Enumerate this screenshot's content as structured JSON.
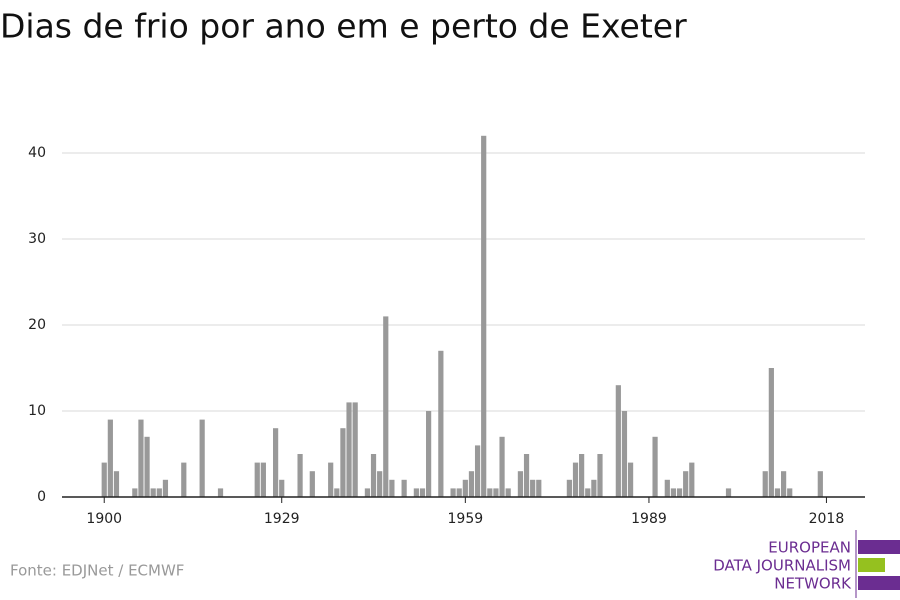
{
  "chart_data": {
    "type": "bar",
    "title": "Dias de frio por ano em e perto de Exeter",
    "source": "Fonte: EDJNet / ECMWF",
    "logo": [
      "EUROPEAN",
      "DATA JOURNALISM",
      "NETWORK"
    ],
    "x": [
      1900,
      1901,
      1902,
      1905,
      1906,
      1907,
      1908,
      1909,
      1910,
      1913,
      1916,
      1919,
      1925,
      1926,
      1928,
      1929,
      1932,
      1934,
      1937,
      1938,
      1939,
      1940,
      1941,
      1943,
      1944,
      1945,
      1946,
      1947,
      1949,
      1951,
      1952,
      1953,
      1955,
      1957,
      1958,
      1959,
      1960,
      1961,
      1962,
      1963,
      1964,
      1965,
      1966,
      1968,
      1969,
      1970,
      1971,
      1976,
      1977,
      1978,
      1979,
      1980,
      1981,
      1984,
      1985,
      1986,
      1990,
      1992,
      1993,
      1994,
      1995,
      1996,
      2002,
      2008,
      2009,
      2010,
      2011,
      2012,
      2017
    ],
    "values": [
      4,
      9,
      3,
      1,
      9,
      7,
      1,
      1,
      2,
      4,
      9,
      1,
      4,
      4,
      8,
      2,
      5,
      3,
      4,
      1,
      8,
      11,
      11,
      1,
      5,
      3,
      21,
      2,
      2,
      1,
      1,
      10,
      17,
      1,
      1,
      2,
      3,
      6,
      42,
      1,
      1,
      7,
      1,
      3,
      5,
      2,
      2,
      2,
      4,
      5,
      1,
      2,
      5,
      13,
      10,
      4,
      7,
      2,
      1,
      1,
      3,
      4,
      1,
      3,
      15,
      1,
      3,
      1,
      3
    ],
    "color": "#999999",
    "xlim": [
      1893.1,
      2024.3
    ],
    "xticks": [
      1900,
      1929,
      1959,
      1989,
      2018
    ],
    "ylim": [
      0,
      45
    ],
    "yticks": [
      0,
      10,
      20,
      30,
      40
    ],
    "grid": true
  }
}
